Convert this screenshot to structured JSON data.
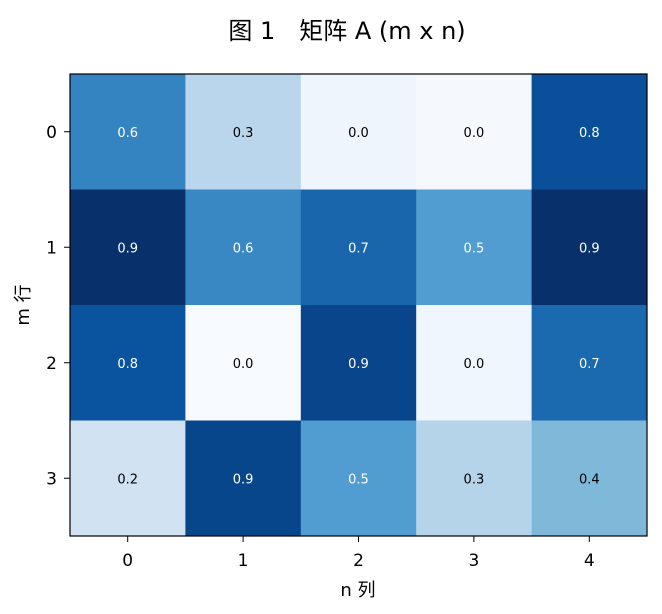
{
  "chart_data": {
    "type": "heatmap",
    "title": "图 1　矩阵 A (m x n)",
    "xlabel": "n 列",
    "ylabel": "m 行",
    "x_ticks": [
      "0",
      "1",
      "2",
      "3",
      "4"
    ],
    "y_ticks": [
      "0",
      "1",
      "2",
      "3"
    ],
    "values": [
      [
        0.6,
        0.3,
        0.0,
        0.0,
        0.8
      ],
      [
        0.9,
        0.6,
        0.7,
        0.5,
        0.9
      ],
      [
        0.8,
        0.0,
        0.9,
        0.0,
        0.7
      ],
      [
        0.2,
        0.9,
        0.5,
        0.3,
        0.4
      ]
    ],
    "labels": [
      [
        "0.6",
        "0.3",
        "0.0",
        "0.0",
        "0.8"
      ],
      [
        "0.9",
        "0.6",
        "0.7",
        "0.5",
        "0.9"
      ],
      [
        "0.8",
        "0.0",
        "0.9",
        "0.0",
        "0.7"
      ],
      [
        "0.2",
        "0.9",
        "0.5",
        "0.3",
        "0.4"
      ]
    ],
    "colormap": "Blues",
    "colors": [
      [
        "#3484c1",
        "#b9d6ec",
        "#eef5fd",
        "#f5f9fe",
        "#0a4f9a"
      ],
      [
        "#08306b",
        "#3987c3",
        "#1966ad",
        "#519cd0",
        "#08306b"
      ],
      [
        "#0a539e",
        "#f7fbff",
        "#08458a",
        "#f0f6fd",
        "#1b69af"
      ],
      [
        "#d1e2f2",
        "#08468b",
        "#519cd0",
        "#b5d4ea",
        "#7fb9da"
      ]
    ],
    "text_colors": [
      [
        "#ffffff",
        "#000000",
        "#000000",
        "#000000",
        "#ffffff"
      ],
      [
        "#ffffff",
        "#ffffff",
        "#ffffff",
        "#ffffff",
        "#ffffff"
      ],
      [
        "#ffffff",
        "#000000",
        "#ffffff",
        "#000000",
        "#ffffff"
      ],
      [
        "#000000",
        "#ffffff",
        "#ffffff",
        "#000000",
        "#000000"
      ]
    ],
    "grid": false,
    "legend": "none"
  }
}
